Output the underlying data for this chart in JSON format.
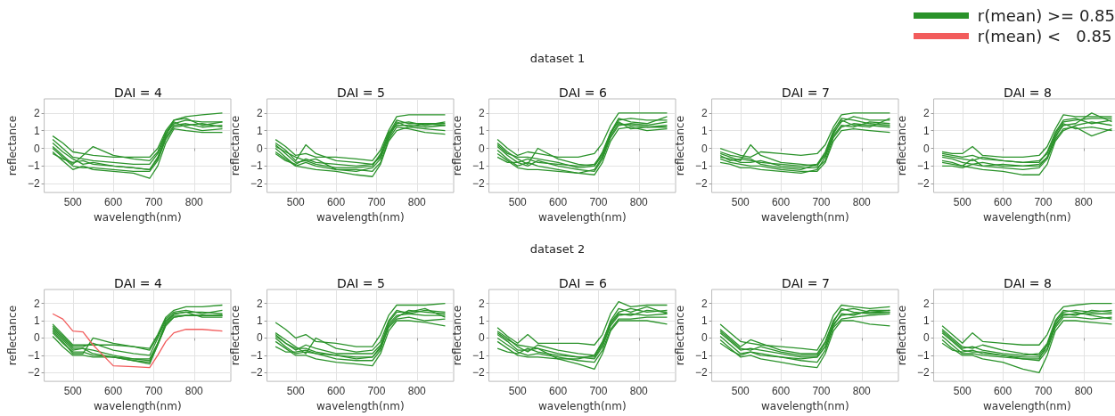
{
  "chart_data": [
    {
      "type": "line",
      "title": "DAI = 4",
      "annotations": [
        "dataset 1"
      ],
      "xlabel": "wavelength(nm)",
      "ylabel": "reflectance",
      "xlim": [
        429,
        891
      ],
      "xticks": [
        500,
        600,
        700,
        800
      ],
      "ylim": [
        -2.5,
        2.8
      ],
      "yticks": [
        -2,
        -1,
        0,
        1,
        2
      ],
      "grid": true,
      "marker": "none",
      "line_style": "solid",
      "x": [
        450,
        475,
        500,
        525,
        550,
        600,
        650,
        690,
        710,
        730,
        750,
        780,
        820,
        870
      ],
      "series": [
        {
          "color": "#2a922a",
          "values": [
            0.7,
            0.3,
            -0.2,
            -0.3,
            -0.4,
            -0.5,
            -0.5,
            -0.5,
            0.0,
            1.0,
            1.6,
            1.8,
            1.9,
            2.0
          ]
        },
        {
          "color": "#2a922a",
          "values": [
            0.5,
            0.0,
            -0.5,
            -0.6,
            -0.7,
            -0.8,
            -0.9,
            -0.9,
            -0.3,
            0.8,
            1.4,
            1.6,
            1.5,
            1.5
          ]
        },
        {
          "color": "#2a922a",
          "values": [
            0.3,
            -0.2,
            -0.6,
            -0.9,
            -0.8,
            -1.0,
            -1.1,
            -1.2,
            -0.6,
            0.6,
            1.3,
            1.4,
            1.2,
            1.3
          ]
        },
        {
          "color": "#2a922a",
          "values": [
            0.1,
            -0.4,
            -0.9,
            -0.4,
            0.1,
            -0.4,
            -0.6,
            -0.7,
            -0.2,
            0.9,
            1.5,
            1.2,
            1.0,
            1.1
          ]
        },
        {
          "color": "#2a922a",
          "values": [
            0.0,
            -0.5,
            -1.0,
            -1.1,
            -1.1,
            -1.2,
            -1.3,
            -1.3,
            -0.7,
            0.5,
            1.2,
            1.3,
            1.4,
            1.2
          ]
        },
        {
          "color": "#2a922a",
          "values": [
            -0.2,
            -0.7,
            -1.2,
            -1.0,
            -1.2,
            -1.3,
            -1.4,
            -1.7,
            -1.0,
            0.3,
            1.1,
            1.0,
            0.9,
            0.9
          ]
        },
        {
          "color": "#2a922a",
          "values": [
            -0.3,
            -0.6,
            -0.8,
            -0.7,
            -0.9,
            -1.0,
            -1.1,
            -1.2,
            -0.5,
            0.7,
            1.6,
            1.7,
            1.3,
            1.5
          ]
        }
      ]
    },
    {
      "type": "line",
      "title": "DAI = 5",
      "xlabel": "wavelength(nm)",
      "ylabel": "reflectance",
      "xlim": [
        429,
        891
      ],
      "xticks": [
        500,
        600,
        700,
        800
      ],
      "ylim": [
        -2.5,
        2.8
      ],
      "yticks": [
        -2,
        -1,
        0,
        1,
        2
      ],
      "grid": true,
      "marker": "none",
      "line_style": "solid",
      "x": [
        450,
        475,
        500,
        525,
        550,
        600,
        650,
        690,
        710,
        730,
        750,
        780,
        820,
        870
      ],
      "series": [
        {
          "color": "#2a922a",
          "values": [
            0.5,
            0.1,
            -0.4,
            -0.3,
            -0.5,
            -0.5,
            -0.6,
            -0.7,
            -0.1,
            1.0,
            1.8,
            1.9,
            1.9,
            1.9
          ]
        },
        {
          "color": "#2a922a",
          "values": [
            0.3,
            -0.1,
            -0.7,
            0.2,
            -0.3,
            -0.7,
            -0.8,
            -0.9,
            -0.4,
            0.8,
            1.6,
            1.4,
            1.4,
            1.4
          ]
        },
        {
          "color": "#2a922a",
          "values": [
            0.2,
            -0.3,
            -0.8,
            -0.7,
            -0.9,
            -1.1,
            -1.1,
            -1.0,
            -0.3,
            0.9,
            1.3,
            1.3,
            1.2,
            1.3
          ]
        },
        {
          "color": "#2a922a",
          "values": [
            0.0,
            -0.5,
            -1.0,
            -0.8,
            -1.0,
            -1.2,
            -1.2,
            -1.3,
            -0.8,
            0.5,
            1.2,
            1.1,
            0.9,
            0.8
          ]
        },
        {
          "color": "#2a922a",
          "values": [
            -0.2,
            -0.6,
            -1.0,
            -1.1,
            -1.2,
            -1.3,
            -1.5,
            -1.6,
            -0.9,
            0.4,
            1.0,
            1.2,
            1.4,
            1.3
          ]
        },
        {
          "color": "#2a922a",
          "values": [
            -0.3,
            -0.7,
            -0.9,
            -0.6,
            -0.8,
            -0.9,
            -1.0,
            -0.9,
            -0.5,
            0.6,
            1.4,
            1.5,
            1.3,
            1.5
          ]
        },
        {
          "color": "#2a922a",
          "values": [
            0.1,
            -0.2,
            -0.5,
            -0.7,
            -0.6,
            -1.2,
            -1.3,
            -1.1,
            -0.6,
            0.7,
            1.5,
            1.2,
            1.1,
            1.0
          ]
        }
      ]
    },
    {
      "type": "line",
      "title": "DAI = 6",
      "xlabel": "wavelength(nm)",
      "ylabel": "reflectance",
      "xlim": [
        429,
        891
      ],
      "xticks": [
        500,
        600,
        700,
        800
      ],
      "ylim": [
        -2.5,
        2.8
      ],
      "yticks": [
        -2,
        -1,
        0,
        1,
        2
      ],
      "grid": true,
      "marker": "none",
      "line_style": "solid",
      "x": [
        450,
        475,
        500,
        525,
        550,
        600,
        650,
        690,
        710,
        730,
        750,
        780,
        820,
        870
      ],
      "series": [
        {
          "color": "#2a922a",
          "values": [
            0.5,
            0.0,
            -0.4,
            -0.2,
            -0.3,
            -0.5,
            -0.5,
            -0.3,
            0.3,
            1.3,
            2.0,
            2.0,
            2.0,
            2.0
          ]
        },
        {
          "color": "#2a922a",
          "values": [
            0.3,
            -0.2,
            -0.6,
            -0.9,
            0.0,
            -0.6,
            -0.9,
            -1.0,
            -0.4,
            0.8,
            1.6,
            1.7,
            1.6,
            1.6
          ]
        },
        {
          "color": "#2a922a",
          "values": [
            0.1,
            -0.4,
            -0.8,
            -1.0,
            -0.7,
            -1.0,
            -1.2,
            -1.3,
            -0.6,
            0.6,
            1.3,
            1.4,
            1.3,
            1.5
          ]
        },
        {
          "color": "#2a922a",
          "values": [
            -0.1,
            -0.6,
            -1.0,
            -0.8,
            -1.0,
            -1.2,
            -1.4,
            -1.5,
            -0.8,
            0.4,
            1.1,
            1.2,
            1.0,
            1.1
          ]
        },
        {
          "color": "#2a922a",
          "values": [
            -0.3,
            -0.7,
            -1.1,
            -1.2,
            -1.2,
            -1.3,
            -1.4,
            -1.2,
            -0.5,
            0.7,
            1.4,
            1.3,
            1.2,
            1.2
          ]
        },
        {
          "color": "#2a922a",
          "values": [
            -0.5,
            -0.8,
            -0.8,
            -0.6,
            -0.8,
            -0.9,
            -1.0,
            -0.9,
            -0.3,
            0.9,
            1.5,
            1.1,
            1.2,
            1.3
          ]
        },
        {
          "color": "#2a922a",
          "values": [
            0.2,
            -0.3,
            -0.5,
            -0.5,
            -0.6,
            -0.8,
            -1.1,
            -1.0,
            -0.2,
            0.9,
            1.7,
            1.5,
            1.4,
            1.8
          ]
        }
      ]
    },
    {
      "type": "line",
      "title": "DAI = 7",
      "xlabel": "wavelength(nm)",
      "ylabel": "reflectance",
      "xlim": [
        429,
        891
      ],
      "xticks": [
        500,
        600,
        700,
        800
      ],
      "ylim": [
        -2.5,
        2.8
      ],
      "yticks": [
        -2,
        -1,
        0,
        1,
        2
      ],
      "grid": true,
      "marker": "none",
      "line_style": "solid",
      "x": [
        450,
        475,
        500,
        525,
        550,
        600,
        650,
        690,
        710,
        730,
        750,
        780,
        820,
        870
      ],
      "series": [
        {
          "color": "#2a922a",
          "values": [
            0.0,
            -0.2,
            -0.4,
            -0.5,
            -0.2,
            -0.3,
            -0.4,
            -0.3,
            0.2,
            1.2,
            1.9,
            2.0,
            2.0,
            2.0
          ]
        },
        {
          "color": "#2a922a",
          "values": [
            -0.3,
            -0.5,
            -0.7,
            0.2,
            -0.4,
            -0.8,
            -0.9,
            -1.0,
            -0.3,
            0.9,
            1.5,
            1.8,
            1.6,
            1.6
          ]
        },
        {
          "color": "#2a922a",
          "values": [
            -0.5,
            -0.6,
            -0.8,
            -0.8,
            -0.7,
            -1.0,
            -1.1,
            -1.1,
            -0.7,
            0.6,
            1.2,
            1.4,
            1.3,
            1.2
          ]
        },
        {
          "color": "#2a922a",
          "values": [
            -0.6,
            -0.8,
            -0.9,
            -1.0,
            -1.0,
            -1.2,
            -1.3,
            -1.3,
            -0.8,
            0.4,
            1.0,
            1.1,
            1.0,
            0.9
          ]
        },
        {
          "color": "#2a922a",
          "values": [
            -0.8,
            -0.9,
            -1.1,
            -1.1,
            -1.2,
            -1.3,
            -1.4,
            -1.2,
            -0.5,
            0.7,
            1.3,
            1.2,
            1.5,
            1.4
          ]
        },
        {
          "color": "#2a922a",
          "values": [
            -0.4,
            -0.7,
            -0.6,
            -0.7,
            -0.8,
            -0.9,
            -1.0,
            -0.9,
            -0.4,
            0.8,
            1.6,
            1.3,
            1.2,
            1.7
          ]
        },
        {
          "color": "#2a922a",
          "values": [
            -0.2,
            -0.4,
            -0.5,
            -0.6,
            -0.9,
            -1.1,
            -1.2,
            -0.9,
            -0.2,
            1.0,
            1.7,
            1.6,
            1.4,
            1.3
          ]
        }
      ]
    },
    {
      "type": "line",
      "title": "DAI = 8",
      "xlabel": "wavelength(nm)",
      "ylabel": "reflectance",
      "xlim": [
        429,
        891
      ],
      "xticks": [
        500,
        600,
        700,
        800
      ],
      "ylim": [
        -2.5,
        2.8
      ],
      "yticks": [
        -2,
        -1,
        0,
        1,
        2
      ],
      "grid": true,
      "marker": "none",
      "line_style": "solid",
      "x": [
        450,
        475,
        500,
        525,
        550,
        600,
        650,
        690,
        710,
        730,
        750,
        780,
        820,
        870
      ],
      "series": [
        {
          "color": "#2a922a",
          "values": [
            -0.2,
            -0.3,
            -0.3,
            0.1,
            -0.4,
            -0.5,
            -0.5,
            -0.4,
            0.1,
            1.1,
            1.9,
            1.8,
            1.8,
            1.8
          ]
        },
        {
          "color": "#2a922a",
          "values": [
            -0.4,
            -0.5,
            -0.6,
            -0.7,
            -0.5,
            -0.7,
            -0.8,
            -0.8,
            -0.2,
            0.9,
            1.6,
            1.7,
            1.4,
            1.6
          ]
        },
        {
          "color": "#2a922a",
          "values": [
            -0.5,
            -0.6,
            -0.8,
            -0.9,
            -0.8,
            -1.0,
            -1.0,
            -1.0,
            -0.5,
            0.7,
            1.3,
            1.4,
            2.0,
            1.5
          ]
        },
        {
          "color": "#2a922a",
          "values": [
            -0.7,
            -0.8,
            -1.0,
            -0.6,
            -1.0,
            -1.1,
            -1.2,
            -1.1,
            -0.6,
            0.5,
            1.1,
            1.2,
            0.7,
            1.1
          ]
        },
        {
          "color": "#2a922a",
          "values": [
            -0.8,
            -0.9,
            -1.0,
            -1.1,
            -1.2,
            -1.3,
            -1.5,
            -1.5,
            -0.9,
            0.4,
            1.0,
            1.3,
            1.5,
            1.3
          ]
        },
        {
          "color": "#2a922a",
          "values": [
            -0.3,
            -0.4,
            -0.5,
            -0.4,
            -0.6,
            -0.7,
            -0.8,
            -0.7,
            -0.3,
            0.8,
            1.5,
            1.6,
            1.7,
            1.7
          ]
        },
        {
          "color": "#2a922a",
          "values": [
            -1.0,
            -1.0,
            -1.1,
            -0.9,
            -1.0,
            -0.9,
            -1.0,
            -0.9,
            -0.5,
            0.6,
            1.4,
            1.1,
            1.2,
            1.0
          ]
        }
      ]
    },
    {
      "type": "line",
      "title": "DAI = 4",
      "annotations": [
        "dataset 2"
      ],
      "xlabel": "wavelength(nm)",
      "ylabel": "reflectance",
      "xlim": [
        429,
        891
      ],
      "xticks": [
        500,
        600,
        700,
        800
      ],
      "ylim": [
        -2.5,
        2.8
      ],
      "yticks": [
        -2,
        -1,
        0,
        1,
        2
      ],
      "grid": true,
      "marker": "none",
      "line_style": "solid",
      "legend": "top right",
      "x": [
        450,
        475,
        500,
        525,
        550,
        600,
        650,
        690,
        710,
        730,
        750,
        780,
        820,
        870
      ],
      "series": [
        {
          "name": "r(mean) >= 0.85",
          "color": "#2a922a",
          "values": [
            0.8,
            0.2,
            -0.4,
            -0.4,
            -0.4,
            -0.4,
            -0.5,
            -0.6,
            0.2,
            1.2,
            1.6,
            1.8,
            1.8,
            1.9
          ]
        },
        {
          "color": "#2a922a",
          "values": [
            0.7,
            0.1,
            -0.5,
            -0.5,
            -0.3,
            -0.7,
            -0.9,
            -1.0,
            0.0,
            1.0,
            1.4,
            1.5,
            1.5,
            1.4
          ]
        },
        {
          "color": "#2a922a",
          "values": [
            0.6,
            0.0,
            -0.6,
            -0.6,
            -0.7,
            -1.0,
            -1.2,
            -1.3,
            -0.3,
            0.8,
            1.2,
            1.3,
            1.3,
            1.3
          ]
        },
        {
          "color": "#2a922a",
          "values": [
            0.5,
            -0.1,
            -0.7,
            -0.6,
            -0.9,
            -1.1,
            -1.3,
            -1.5,
            -0.4,
            0.7,
            1.2,
            1.3,
            1.3,
            1.3
          ]
        },
        {
          "color": "#2a922a",
          "values": [
            0.3,
            -0.3,
            -0.8,
            -0.8,
            -1.0,
            -1.1,
            -1.3,
            -1.4,
            -0.4,
            0.8,
            1.3,
            1.3,
            1.3,
            1.3
          ]
        },
        {
          "color": "#2a922a",
          "values": [
            0.1,
            -0.5,
            -1.0,
            -1.0,
            -1.1,
            -1.1,
            -1.2,
            -1.2,
            -0.3,
            0.9,
            1.4,
            1.5,
            1.2,
            1.2
          ]
        },
        {
          "color": "#2a922a",
          "values": [
            0.4,
            -0.2,
            -0.9,
            -0.9,
            0.0,
            -0.3,
            -0.5,
            -0.7,
            0.1,
            1.1,
            1.5,
            1.6,
            1.4,
            1.6
          ]
        },
        {
          "name": "r(mean) <   0.85",
          "color": "#f25c5c",
          "values": [
            1.4,
            1.1,
            0.4,
            0.35,
            -0.4,
            -1.6,
            -1.65,
            -1.7,
            -1.0,
            -0.2,
            0.3,
            0.5,
            0.5,
            0.4
          ]
        }
      ]
    },
    {
      "type": "line",
      "title": "DAI = 5",
      "xlabel": "wavelength(nm)",
      "ylabel": "reflectance",
      "xlim": [
        429,
        891
      ],
      "xticks": [
        500,
        600,
        700,
        800
      ],
      "ylim": [
        -2.5,
        2.8
      ],
      "yticks": [
        -2,
        -1,
        0,
        1,
        2
      ],
      "grid": true,
      "marker": "none",
      "line_style": "solid",
      "x": [
        450,
        475,
        500,
        525,
        550,
        600,
        650,
        690,
        710,
        730,
        750,
        780,
        820,
        870
      ],
      "series": [
        {
          "color": "#2a922a",
          "values": [
            0.9,
            0.5,
            0.0,
            0.2,
            -0.2,
            -0.3,
            -0.5,
            -0.5,
            0.2,
            1.3,
            1.9,
            1.9,
            1.9,
            2.0
          ]
        },
        {
          "color": "#2a922a",
          "values": [
            0.3,
            -0.1,
            -0.5,
            -0.9,
            0.0,
            -0.6,
            -0.8,
            -0.7,
            -0.2,
            1.0,
            1.6,
            1.4,
            1.6,
            1.5
          ]
        },
        {
          "color": "#2a922a",
          "values": [
            0.2,
            -0.3,
            -0.7,
            -0.4,
            -0.6,
            -0.9,
            -0.9,
            -0.9,
            -0.4,
            0.8,
            1.3,
            1.4,
            1.3,
            1.3
          ]
        },
        {
          "color": "#2a922a",
          "values": [
            0.0,
            -0.5,
            -0.9,
            -0.8,
            -0.9,
            -1.0,
            -1.1,
            -1.1,
            -0.6,
            0.6,
            1.1,
            1.2,
            1.0,
            1.1
          ]
        },
        {
          "color": "#2a922a",
          "values": [
            -0.2,
            -0.6,
            -1.0,
            -1.0,
            -1.2,
            -1.4,
            -1.5,
            -1.6,
            -0.9,
            0.4,
            1.0,
            1.0,
            0.9,
            0.7
          ]
        },
        {
          "color": "#2a922a",
          "values": [
            -0.5,
            -0.8,
            -0.8,
            -0.7,
            -0.9,
            -1.2,
            -1.3,
            -1.3,
            -0.7,
            0.7,
            1.2,
            1.6,
            1.5,
            1.4
          ]
        },
        {
          "color": "#2a922a",
          "values": [
            0.1,
            -0.3,
            -0.6,
            -0.6,
            -0.8,
            -1.0,
            -1.2,
            -1.1,
            -0.5,
            0.9,
            1.5,
            1.5,
            1.7,
            1.2
          ]
        }
      ]
    },
    {
      "type": "line",
      "title": "DAI = 6",
      "xlabel": "wavelength(nm)",
      "ylabel": "reflectance",
      "xlim": [
        429,
        891
      ],
      "xticks": [
        500,
        600,
        700,
        800
      ],
      "ylim": [
        -2.5,
        2.8
      ],
      "yticks": [
        -2,
        -1,
        0,
        1,
        2
      ],
      "grid": true,
      "marker": "none",
      "line_style": "solid",
      "x": [
        450,
        475,
        500,
        525,
        550,
        600,
        650,
        690,
        710,
        730,
        750,
        780,
        820,
        870
      ],
      "series": [
        {
          "color": "#2a922a",
          "values": [
            0.6,
            0.1,
            -0.3,
            0.2,
            -0.3,
            -0.3,
            -0.3,
            -0.4,
            0.2,
            1.4,
            2.1,
            1.8,
            1.9,
            1.9
          ]
        },
        {
          "color": "#2a922a",
          "values": [
            0.4,
            0.0,
            -0.5,
            -0.8,
            -0.4,
            -0.7,
            -0.9,
            -1.0,
            -0.2,
            0.9,
            1.5,
            1.7,
            1.5,
            1.6
          ]
        },
        {
          "color": "#2a922a",
          "values": [
            0.2,
            -0.2,
            -0.7,
            -0.7,
            -0.6,
            -0.9,
            -1.1,
            -1.2,
            -0.5,
            0.7,
            1.3,
            1.4,
            1.3,
            1.4
          ]
        },
        {
          "color": "#2a922a",
          "values": [
            0.0,
            -0.4,
            -0.8,
            -1.0,
            -0.9,
            -1.1,
            -1.3,
            -1.4,
            -0.7,
            0.5,
            1.1,
            1.1,
            1.2,
            1.2
          ]
        },
        {
          "color": "#2a922a",
          "values": [
            -0.2,
            -0.6,
            -1.0,
            -1.1,
            -1.1,
            -1.2,
            -1.5,
            -1.8,
            -0.9,
            0.4,
            1.0,
            1.0,
            1.0,
            0.8
          ]
        },
        {
          "color": "#2a922a",
          "values": [
            -0.6,
            -0.8,
            -0.9,
            -0.6,
            -0.8,
            -1.0,
            -1.1,
            -1.1,
            -0.4,
            0.8,
            1.4,
            1.3,
            1.6,
            1.5
          ]
        },
        {
          "color": "#2a922a",
          "values": [
            0.3,
            -0.1,
            -0.4,
            -0.5,
            -0.6,
            -1.2,
            -1.2,
            -1.0,
            -0.3,
            1.0,
            1.7,
            1.5,
            1.8,
            1.4
          ]
        }
      ]
    },
    {
      "type": "line",
      "title": "DAI = 7",
      "xlabel": "wavelength(nm)",
      "ylabel": "reflectance",
      "xlim": [
        429,
        891
      ],
      "xticks": [
        500,
        600,
        700,
        800
      ],
      "ylim": [
        -2.5,
        2.8
      ],
      "yticks": [
        -2,
        -1,
        0,
        1,
        2
      ],
      "grid": true,
      "marker": "none",
      "line_style": "solid",
      "x": [
        450,
        475,
        500,
        525,
        550,
        600,
        650,
        690,
        710,
        730,
        750,
        780,
        820,
        870
      ],
      "series": [
        {
          "color": "#2a922a",
          "values": [
            0.8,
            0.3,
            -0.2,
            -0.3,
            -0.4,
            -0.5,
            -0.6,
            -0.7,
            0.1,
            1.3,
            1.9,
            1.8,
            1.7,
            1.8
          ]
        },
        {
          "color": "#2a922a",
          "values": [
            0.5,
            0.0,
            -0.5,
            -0.1,
            -0.3,
            -0.7,
            -0.9,
            -0.9,
            -0.2,
            1.0,
            1.6,
            1.7,
            1.5,
            1.6
          ]
        },
        {
          "color": "#2a922a",
          "values": [
            0.3,
            -0.2,
            -0.7,
            -0.6,
            -0.7,
            -0.9,
            -1.1,
            -1.1,
            -0.5,
            0.8,
            1.3,
            1.4,
            1.5,
            1.5
          ]
        },
        {
          "color": "#2a922a",
          "values": [
            0.1,
            -0.4,
            -0.9,
            -0.8,
            -0.9,
            -1.1,
            -1.3,
            -1.4,
            -0.7,
            0.6,
            1.1,
            1.2,
            1.3,
            1.4
          ]
        },
        {
          "color": "#2a922a",
          "values": [
            -0.1,
            -0.6,
            -1.1,
            -1.0,
            -1.2,
            -1.4,
            -1.6,
            -1.7,
            -0.9,
            0.4,
            1.0,
            1.0,
            0.8,
            0.7
          ]
        },
        {
          "color": "#2a922a",
          "values": [
            -0.3,
            -0.7,
            -1.0,
            -0.8,
            -1.0,
            -1.1,
            -1.2,
            -1.1,
            -0.5,
            0.7,
            1.4,
            1.3,
            1.6,
            1.6
          ]
        },
        {
          "color": "#2a922a",
          "values": [
            0.4,
            -0.1,
            -0.6,
            -0.7,
            -0.5,
            -0.8,
            -1.0,
            -1.0,
            -0.3,
            0.9,
            1.7,
            1.5,
            1.4,
            1.5
          ]
        }
      ]
    },
    {
      "type": "line",
      "title": "DAI = 8",
      "xlabel": "wavelength(nm)",
      "ylabel": "reflectance",
      "xlim": [
        429,
        891
      ],
      "xticks": [
        500,
        600,
        700,
        800
      ],
      "ylim": [
        -2.5,
        2.8
      ],
      "yticks": [
        -2,
        -1,
        0,
        1,
        2
      ],
      "grid": true,
      "marker": "none",
      "line_style": "solid",
      "x": [
        450,
        475,
        500,
        525,
        550,
        600,
        650,
        690,
        710,
        730,
        750,
        780,
        820,
        870
      ],
      "series": [
        {
          "color": "#2a922a",
          "values": [
            0.7,
            0.2,
            -0.3,
            0.3,
            -0.2,
            -0.3,
            -0.4,
            -0.4,
            0.2,
            1.3,
            1.8,
            1.9,
            2.0,
            2.0
          ]
        },
        {
          "color": "#2a922a",
          "values": [
            0.5,
            0.0,
            -0.5,
            -0.6,
            -0.4,
            -0.7,
            -0.9,
            -1.0,
            -0.4,
            0.9,
            1.5,
            1.6,
            1.5,
            1.6
          ]
        },
        {
          "color": "#2a922a",
          "values": [
            0.3,
            -0.2,
            -0.7,
            -0.8,
            -0.8,
            -1.0,
            -1.1,
            -1.1,
            -0.6,
            0.8,
            1.3,
            1.4,
            1.4,
            1.4
          ]
        },
        {
          "color": "#2a922a",
          "values": [
            0.1,
            -0.4,
            -0.9,
            -0.9,
            -1.0,
            -1.1,
            -1.2,
            -1.3,
            -0.7,
            0.6,
            1.2,
            1.2,
            1.1,
            1.2
          ]
        },
        {
          "color": "#2a922a",
          "values": [
            -0.1,
            -0.6,
            -1.0,
            -1.0,
            -1.2,
            -1.4,
            -1.8,
            -2.0,
            -1.0,
            0.4,
            1.0,
            1.0,
            0.9,
            0.8
          ]
        },
        {
          "color": "#2a922a",
          "values": [
            -0.3,
            -0.7,
            -0.8,
            -0.7,
            -0.9,
            -1.0,
            -1.2,
            -1.2,
            -0.4,
            0.7,
            1.4,
            1.3,
            1.6,
            1.5
          ]
        },
        {
          "color": "#2a922a",
          "values": [
            0.4,
            -0.1,
            -0.6,
            -0.5,
            -0.7,
            -0.9,
            -1.0,
            -0.9,
            -0.3,
            1.0,
            1.6,
            1.5,
            1.3,
            1.1
          ]
        }
      ]
    }
  ]
}
